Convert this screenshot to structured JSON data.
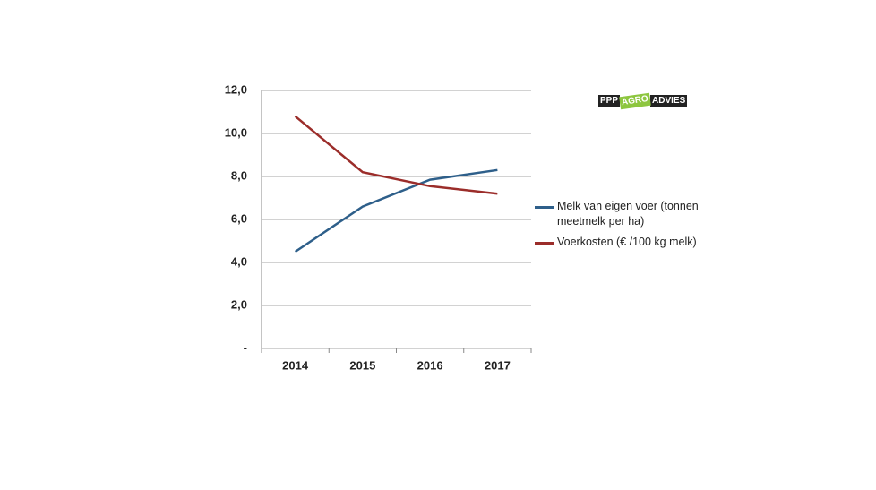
{
  "chart_data": {
    "type": "line",
    "categories": [
      "2014",
      "2015",
      "2016",
      "2017"
    ],
    "series": [
      {
        "name": "Melk van eigen voer (tonnen meetmelk per ha)",
        "color": "#2e5f8a",
        "values": [
          4.5,
          6.6,
          7.85,
          8.3
        ]
      },
      {
        "name": "Voerkosten (€ /100 kg melk)",
        "color": "#9b2d2a",
        "values": [
          10.8,
          8.2,
          7.55,
          7.2
        ]
      }
    ],
    "ylim": [
      0,
      12
    ],
    "yticks": [
      {
        "value": 0,
        "label": "-"
      },
      {
        "value": 2,
        "label": "2,0"
      },
      {
        "value": 4,
        "label": "4,0"
      },
      {
        "value": 6,
        "label": "6,0"
      },
      {
        "value": 8,
        "label": "8,0"
      },
      {
        "value": 10,
        "label": "10,0"
      },
      {
        "value": 12,
        "label": "12,0"
      }
    ],
    "grid": true,
    "legend": "right"
  },
  "logo": {
    "parts": [
      "PPP",
      "AGRO",
      "ADVIES"
    ]
  }
}
